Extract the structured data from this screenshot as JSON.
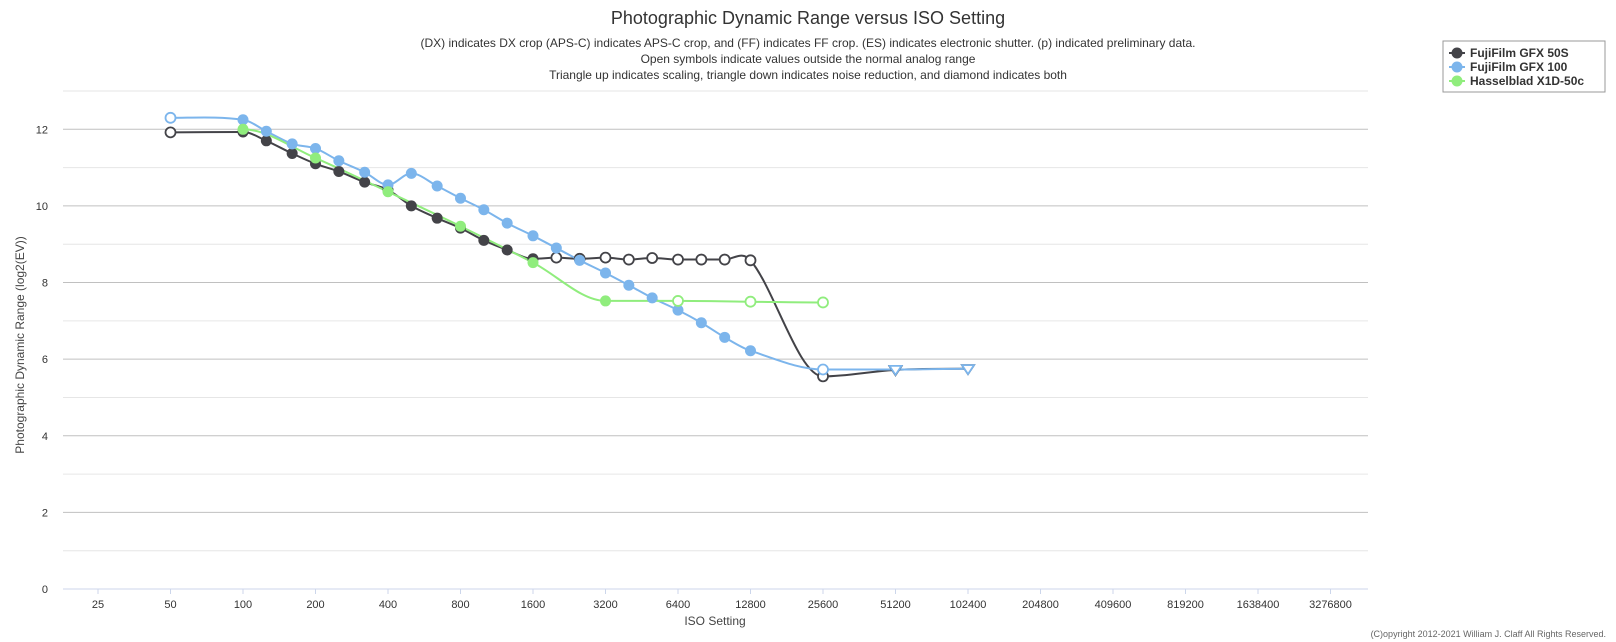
{
  "chart_data": {
    "type": "line",
    "title": "Photographic Dynamic Range versus ISO Setting",
    "subtitle": [
      "(DX) indicates DX crop (APS-C) indicates APS-C crop, and (FF) indicates FF crop. (ES) indicates electronic shutter. (p) indicated preliminary data.",
      "Open symbols indicate values outside the normal analog range",
      "Triangle up indicates scaling, triangle down indicates noise reduction, and diamond indicates both"
    ],
    "xlabel": "ISO Setting",
    "ylabel": "Photographic Dynamic Range (log2(EV))",
    "x_scale": "log2",
    "x_ticks": [
      25,
      50,
      100,
      200,
      400,
      800,
      1600,
      3200,
      6400,
      12800,
      25600,
      51200,
      102400,
      204800,
      409600,
      819200,
      1638400,
      3276800
    ],
    "y_ticks": [
      0,
      2,
      4,
      6,
      8,
      10,
      12
    ],
    "ylim": [
      0,
      13
    ],
    "grid": true,
    "legend_position": "top-right",
    "credit": "(C)opyright 2012-2021 William J. Claff All Rights Reserved.",
    "series": [
      {
        "name": "FujiFilm GFX 50S",
        "color": "#434348",
        "points": [
          {
            "x": 50,
            "y": 11.92,
            "marker": "open"
          },
          {
            "x": 100,
            "y": 11.93,
            "marker": "filled"
          },
          {
            "x": 125,
            "y": 11.7,
            "marker": "filled"
          },
          {
            "x": 160,
            "y": 11.37,
            "marker": "filled"
          },
          {
            "x": 200,
            "y": 11.1,
            "marker": "filled"
          },
          {
            "x": 250,
            "y": 10.9,
            "marker": "filled"
          },
          {
            "x": 320,
            "y": 10.62,
            "marker": "filled"
          },
          {
            "x": 400,
            "y": 10.42,
            "marker": "filled"
          },
          {
            "x": 500,
            "y": 10.0,
            "marker": "filled"
          },
          {
            "x": 640,
            "y": 9.68,
            "marker": "filled"
          },
          {
            "x": 800,
            "y": 9.42,
            "marker": "filled"
          },
          {
            "x": 1000,
            "y": 9.1,
            "marker": "filled"
          },
          {
            "x": 1250,
            "y": 8.85,
            "marker": "filled"
          },
          {
            "x": 1600,
            "y": 8.62,
            "marker": "filled"
          },
          {
            "x": 2000,
            "y": 8.65,
            "marker": "open"
          },
          {
            "x": 2500,
            "y": 8.62,
            "marker": "open"
          },
          {
            "x": 3200,
            "y": 8.65,
            "marker": "open"
          },
          {
            "x": 4000,
            "y": 8.6,
            "marker": "open"
          },
          {
            "x": 5000,
            "y": 8.64,
            "marker": "open"
          },
          {
            "x": 6400,
            "y": 8.6,
            "marker": "open"
          },
          {
            "x": 8000,
            "y": 8.6,
            "marker": "open"
          },
          {
            "x": 10000,
            "y": 8.6,
            "marker": "open"
          },
          {
            "x": 12800,
            "y": 8.58,
            "marker": "open"
          },
          {
            "x": 25600,
            "y": 5.55,
            "marker": "open"
          },
          {
            "x": 51200,
            "y": 5.72,
            "marker": "open-triangle-down"
          },
          {
            "x": 102400,
            "y": 5.75,
            "marker": "open-triangle-down"
          }
        ]
      },
      {
        "name": "FujiFilm GFX 100",
        "color": "#7cb5ec",
        "points": [
          {
            "x": 50,
            "y": 12.3,
            "marker": "open"
          },
          {
            "x": 100,
            "y": 12.25,
            "marker": "filled"
          },
          {
            "x": 125,
            "y": 11.95,
            "marker": "filled"
          },
          {
            "x": 160,
            "y": 11.62,
            "marker": "filled"
          },
          {
            "x": 200,
            "y": 11.5,
            "marker": "filled"
          },
          {
            "x": 250,
            "y": 11.18,
            "marker": "filled"
          },
          {
            "x": 320,
            "y": 10.88,
            "marker": "filled"
          },
          {
            "x": 400,
            "y": 10.55,
            "marker": "filled"
          },
          {
            "x": 500,
            "y": 10.85,
            "marker": "filled"
          },
          {
            "x": 640,
            "y": 10.52,
            "marker": "filled"
          },
          {
            "x": 800,
            "y": 10.2,
            "marker": "filled"
          },
          {
            "x": 1000,
            "y": 9.9,
            "marker": "filled"
          },
          {
            "x": 1250,
            "y": 9.55,
            "marker": "filled"
          },
          {
            "x": 1600,
            "y": 9.22,
            "marker": "filled"
          },
          {
            "x": 2000,
            "y": 8.9,
            "marker": "filled"
          },
          {
            "x": 2500,
            "y": 8.58,
            "marker": "filled"
          },
          {
            "x": 3200,
            "y": 8.25,
            "marker": "filled"
          },
          {
            "x": 4000,
            "y": 7.93,
            "marker": "filled"
          },
          {
            "x": 5000,
            "y": 7.6,
            "marker": "filled"
          },
          {
            "x": 6400,
            "y": 7.28,
            "marker": "filled"
          },
          {
            "x": 8000,
            "y": 6.95,
            "marker": "filled"
          },
          {
            "x": 10000,
            "y": 6.57,
            "marker": "filled"
          },
          {
            "x": 12800,
            "y": 6.22,
            "marker": "filled"
          },
          {
            "x": 25600,
            "y": 5.73,
            "marker": "open"
          },
          {
            "x": 51200,
            "y": 5.73,
            "marker": "open-triangle-down"
          },
          {
            "x": 102400,
            "y": 5.75,
            "marker": "open-triangle-down"
          }
        ]
      },
      {
        "name": "Hasselblad X1D-50c",
        "color": "#90ed7d",
        "points": [
          {
            "x": 100,
            "y": 12.0,
            "marker": "filled"
          },
          {
            "x": 200,
            "y": 11.25,
            "marker": "filled"
          },
          {
            "x": 400,
            "y": 10.37,
            "marker": "filled"
          },
          {
            "x": 800,
            "y": 9.47,
            "marker": "filled"
          },
          {
            "x": 1600,
            "y": 8.52,
            "marker": "filled"
          },
          {
            "x": 3200,
            "y": 7.52,
            "marker": "filled"
          },
          {
            "x": 6400,
            "y": 7.52,
            "marker": "open"
          },
          {
            "x": 12800,
            "y": 7.5,
            "marker": "open"
          },
          {
            "x": 25600,
            "y": 7.48,
            "marker": "open"
          }
        ]
      }
    ]
  }
}
